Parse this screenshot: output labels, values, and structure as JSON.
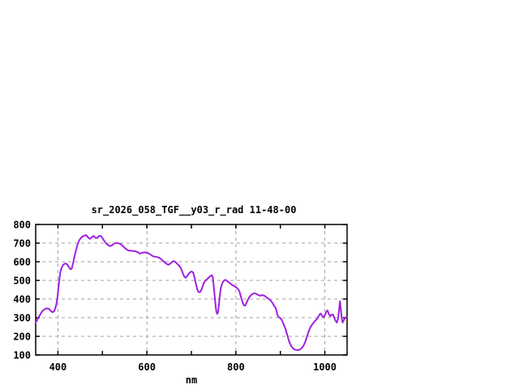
{
  "colors": {
    "background": "#ffffff",
    "line": "#A020E0",
    "grid": "#a0a0a0",
    "axis": "#000000",
    "text": "#000000"
  },
  "chart_data": {
    "type": "line",
    "title": "sr_2026_058_TGF__y03_r_rad 11-48-00",
    "xlabel": "nm",
    "ylabel": "",
    "xlim": [
      350,
      1050
    ],
    "ylim": [
      100,
      800
    ],
    "x_ticks": [
      400,
      500,
      600,
      700,
      800,
      900,
      1000
    ],
    "x_tick_labels": [
      400,
      600,
      800,
      1000
    ],
    "y_ticks": [
      100,
      200,
      300,
      400,
      500,
      600,
      700,
      800
    ],
    "grid": true,
    "grid_x_lines": [
      400,
      600,
      800,
      1000
    ],
    "grid_y_lines": [
      200,
      300,
      400,
      500,
      600,
      700
    ],
    "legend_position": "none",
    "series": [
      {
        "name": "sr_2026_058_TGF__y03_r_rad",
        "points": [
          [
            350,
            274
          ],
          [
            353,
            286
          ],
          [
            356,
            300
          ],
          [
            360,
            316
          ],
          [
            364,
            332
          ],
          [
            368,
            342
          ],
          [
            372,
            348
          ],
          [
            376,
            350
          ],
          [
            380,
            347
          ],
          [
            384,
            336
          ],
          [
            388,
            329
          ],
          [
            392,
            336
          ],
          [
            396,
            365
          ],
          [
            399,
            410
          ],
          [
            402,
            478
          ],
          [
            405,
            540
          ],
          [
            408,
            566
          ],
          [
            411,
            580
          ],
          [
            414,
            588
          ],
          [
            417,
            591
          ],
          [
            420,
            588
          ],
          [
            424,
            574
          ],
          [
            428,
            560
          ],
          [
            431,
            563
          ],
          [
            434,
            592
          ],
          [
            437,
            626
          ],
          [
            440,
            656
          ],
          [
            444,
            692
          ],
          [
            448,
            716
          ],
          [
            452,
            729
          ],
          [
            456,
            736
          ],
          [
            460,
            741
          ],
          [
            464,
            742
          ],
          [
            468,
            730
          ],
          [
            472,
            723
          ],
          [
            476,
            731
          ],
          [
            480,
            739
          ],
          [
            484,
            729
          ],
          [
            488,
            727
          ],
          [
            492,
            738
          ],
          [
            496,
            740
          ],
          [
            500,
            727
          ],
          [
            504,
            712
          ],
          [
            508,
            699
          ],
          [
            512,
            691
          ],
          [
            516,
            684
          ],
          [
            520,
            687
          ],
          [
            524,
            693
          ],
          [
            528,
            699
          ],
          [
            532,
            701
          ],
          [
            536,
            699
          ],
          [
            540,
            696
          ],
          [
            544,
            689
          ],
          [
            548,
            679
          ],
          [
            552,
            671
          ],
          [
            556,
            663
          ],
          [
            560,
            660
          ],
          [
            564,
            659
          ],
          [
            568,
            658
          ],
          [
            572,
            658
          ],
          [
            576,
            655
          ],
          [
            580,
            651
          ],
          [
            584,
            644
          ],
          [
            588,
            647
          ],
          [
            592,
            650
          ],
          [
            596,
            650
          ],
          [
            600,
            648
          ],
          [
            604,
            645
          ],
          [
            608,
            639
          ],
          [
            612,
            632
          ],
          [
            616,
            628
          ],
          [
            620,
            627
          ],
          [
            624,
            625
          ],
          [
            628,
            621
          ],
          [
            632,
            614
          ],
          [
            636,
            605
          ],
          [
            640,
            597
          ],
          [
            644,
            589
          ],
          [
            648,
            584
          ],
          [
            652,
            589
          ],
          [
            656,
            598
          ],
          [
            660,
            604
          ],
          [
            664,
            599
          ],
          [
            668,
            589
          ],
          [
            672,
            581
          ],
          [
            676,
            568
          ],
          [
            680,
            544
          ],
          [
            684,
            521
          ],
          [
            687,
            514
          ],
          [
            690,
            521
          ],
          [
            694,
            536
          ],
          [
            698,
            545
          ],
          [
            701,
            548
          ],
          [
            704,
            542
          ],
          [
            707,
            518
          ],
          [
            710,
            484
          ],
          [
            713,
            454
          ],
          [
            716,
            438
          ],
          [
            719,
            436
          ],
          [
            722,
            446
          ],
          [
            725,
            466
          ],
          [
            728,
            486
          ],
          [
            731,
            497
          ],
          [
            734,
            505
          ],
          [
            737,
            511
          ],
          [
            740,
            517
          ],
          [
            743,
            524
          ],
          [
            746,
            528
          ],
          [
            748,
            519
          ],
          [
            750,
            478
          ],
          [
            752,
            428
          ],
          [
            754,
            376
          ],
          [
            756,
            334
          ],
          [
            758,
            320
          ],
          [
            760,
            329
          ],
          [
            762,
            372
          ],
          [
            764,
            421
          ],
          [
            766,
            456
          ],
          [
            768,
            475
          ],
          [
            771,
            492
          ],
          [
            774,
            501
          ],
          [
            777,
            503
          ],
          [
            780,
            497
          ],
          [
            784,
            490
          ],
          [
            788,
            482
          ],
          [
            792,
            475
          ],
          [
            796,
            470
          ],
          [
            800,
            464
          ],
          [
            804,
            456
          ],
          [
            808,
            442
          ],
          [
            812,
            408
          ],
          [
            815,
            384
          ],
          [
            818,
            366
          ],
          [
            821,
            365
          ],
          [
            824,
            381
          ],
          [
            827,
            396
          ],
          [
            830,
            409
          ],
          [
            834,
            421
          ],
          [
            838,
            428
          ],
          [
            842,
            431
          ],
          [
            846,
            428
          ],
          [
            850,
            422
          ],
          [
            854,
            418
          ],
          [
            858,
            421
          ],
          [
            862,
            420
          ],
          [
            866,
            415
          ],
          [
            870,
            407
          ],
          [
            874,
            400
          ],
          [
            878,
            392
          ],
          [
            882,
            381
          ],
          [
            886,
            364
          ],
          [
            890,
            349
          ],
          [
            893,
            319
          ],
          [
            896,
            303
          ],
          [
            900,
            298
          ],
          [
            904,
            284
          ],
          [
            908,
            261
          ],
          [
            912,
            236
          ],
          [
            916,
            203
          ],
          [
            920,
            171
          ],
          [
            924,
            149
          ],
          [
            928,
            136
          ],
          [
            932,
            129
          ],
          [
            936,
            127
          ],
          [
            940,
            126
          ],
          [
            944,
            129
          ],
          [
            948,
            137
          ],
          [
            952,
            149
          ],
          [
            956,
            169
          ],
          [
            960,
            199
          ],
          [
            964,
            229
          ],
          [
            968,
            251
          ],
          [
            972,
            265
          ],
          [
            976,
            277
          ],
          [
            980,
            288
          ],
          [
            984,
            299
          ],
          [
            988,
            316
          ],
          [
            991,
            322
          ],
          [
            994,
            309
          ],
          [
            997,
            302
          ],
          [
            1000,
            313
          ],
          [
            1003,
            331
          ],
          [
            1006,
            339
          ],
          [
            1009,
            319
          ],
          [
            1012,
            308
          ],
          [
            1015,
            316
          ],
          [
            1018,
            317
          ],
          [
            1021,
            301
          ],
          [
            1024,
            284
          ],
          [
            1027,
            274
          ],
          [
            1030,
            296
          ],
          [
            1032,
            342
          ],
          [
            1034,
            388
          ],
          [
            1036,
            344
          ],
          [
            1038,
            299
          ],
          [
            1040,
            274
          ],
          [
            1043,
            289
          ],
          [
            1046,
            301
          ],
          [
            1049,
            303
          ]
        ]
      }
    ]
  }
}
